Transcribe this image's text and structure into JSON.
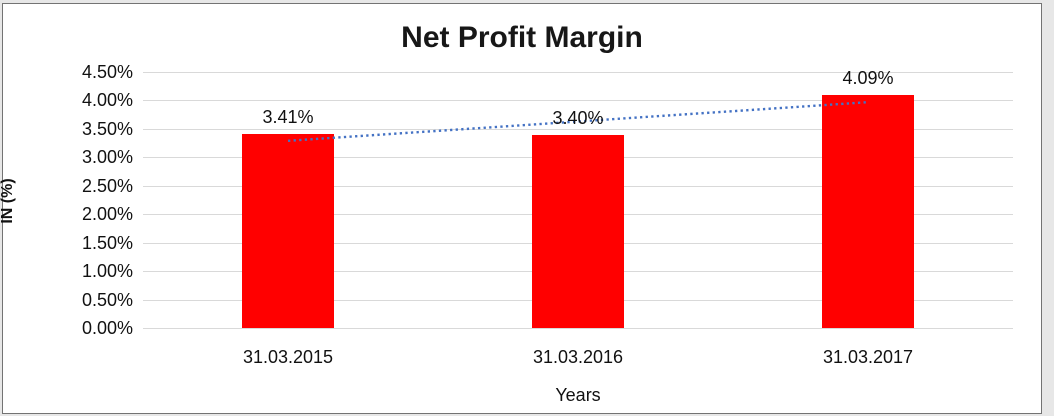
{
  "window": {
    "background": "#e7e7e7",
    "frame_border": "#737373",
    "frame_background": "#ffffff"
  },
  "chart_data": {
    "type": "bar",
    "title": "Net Profit Margin",
    "categories": [
      "31.03.2015",
      "31.03.2016",
      "31.03.2017"
    ],
    "values": [
      3.41,
      3.4,
      4.09
    ],
    "data_labels": [
      "3.41%",
      "3.40%",
      "4.09%"
    ],
    "xlabel": "Years",
    "ylabel": "IN (%)",
    "ylim": [
      0,
      4.5
    ],
    "ytick_step": 0.5,
    "ytick_labels": [
      "0.00%",
      "0.50%",
      "1.00%",
      "1.50%",
      "2.00%",
      "2.50%",
      "3.00%",
      "3.50%",
      "4.00%",
      "4.50%"
    ],
    "grid": true,
    "legend": "none",
    "bar_color": "#ff0000",
    "gridline_color": "#d9d9d9",
    "text_color": "#111111",
    "trendline": {
      "style": "dotted",
      "color": "#4472c4",
      "start_value": 3.29,
      "end_value": 3.97
    }
  }
}
